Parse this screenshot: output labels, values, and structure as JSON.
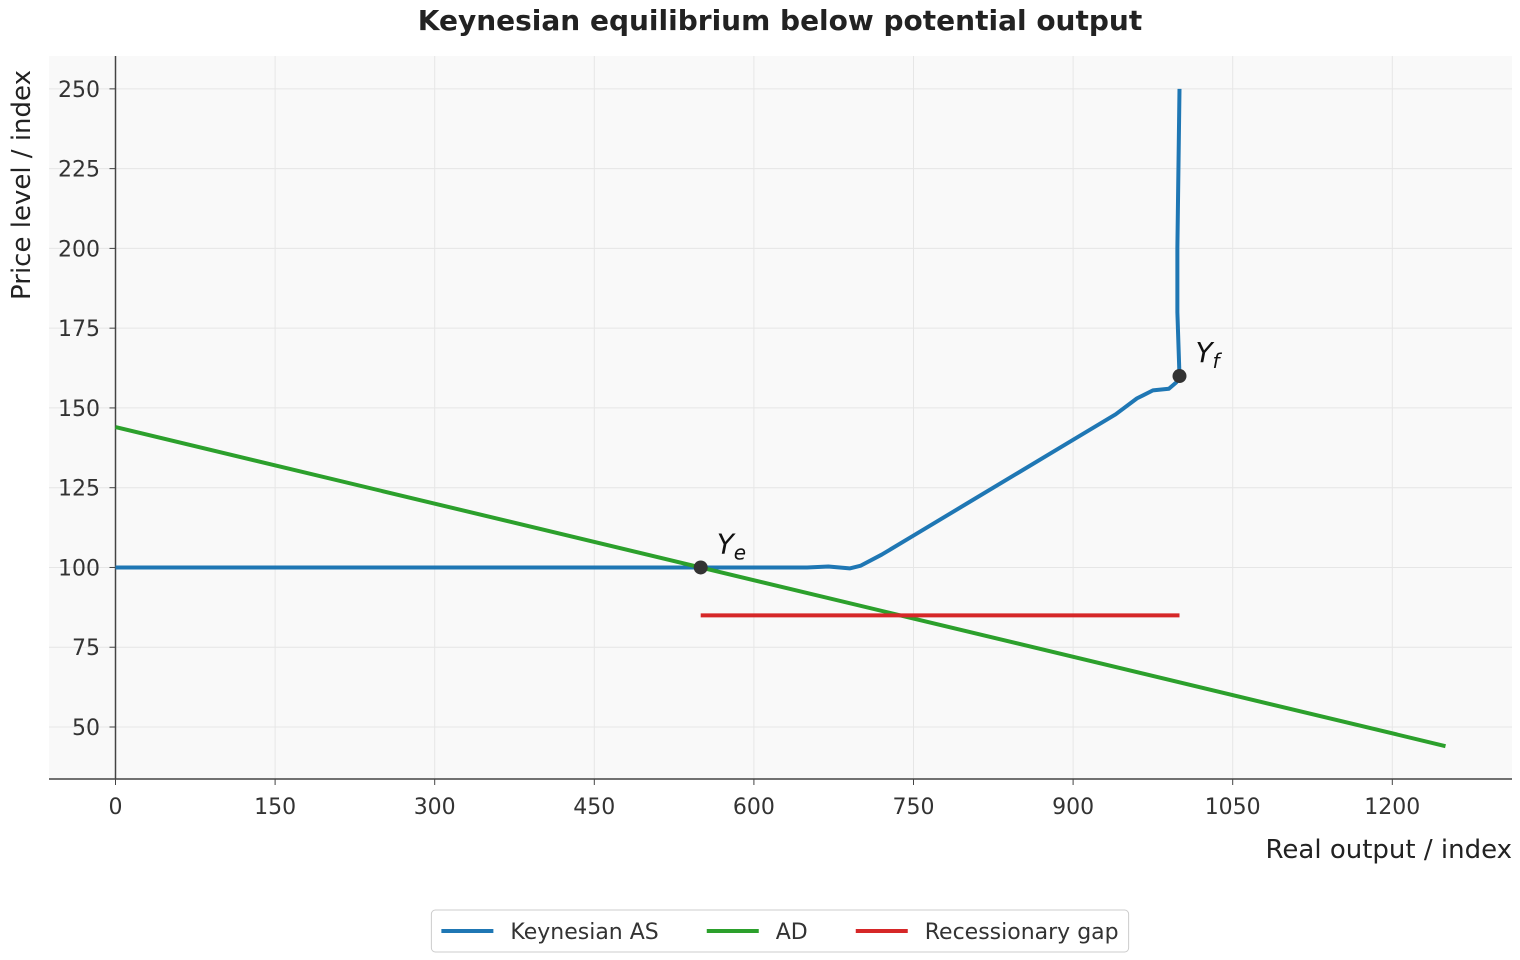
{
  "chart_data": {
    "type": "line",
    "title": "Keynesian equilibrium below potential output",
    "x_label": "Real output / index",
    "y_label": "Price level / index",
    "xlim": [
      -62.5,
      1312.5
    ],
    "ylim": [
      33.7,
      260.3
    ],
    "xticks": [
      0,
      150,
      300,
      450,
      600,
      750,
      900,
      1050,
      1200
    ],
    "yticks": [
      50,
      75,
      100,
      125,
      150,
      175,
      200,
      225,
      250
    ],
    "grid": true,
    "legend": "bottom",
    "series": [
      {
        "name": "Keynesian AS",
        "color": "#1f77b4",
        "x": [
          0,
          100,
          200,
          300,
          400,
          500,
          550,
          600,
          650,
          670,
          690,
          700,
          720,
          750,
          800,
          850,
          900,
          940,
          960,
          975,
          990,
          997,
          1000,
          999,
          998,
          998,
          999,
          1000
        ],
        "values": [
          100,
          100,
          100,
          100,
          100,
          100,
          100,
          100,
          100,
          100.3,
          99.7,
          100.5,
          104,
          110,
          120,
          130,
          140,
          148,
          153,
          155.5,
          156,
          158,
          160,
          170,
          180,
          200,
          225,
          250
        ]
      },
      {
        "name": "AD",
        "color": "#2ca02c",
        "x": [
          0,
          1250
        ],
        "values": [
          144,
          44
        ]
      },
      {
        "name": "Recessionary gap",
        "color": "#d62728",
        "x": [
          550,
          1000
        ],
        "values": [
          85,
          85
        ]
      }
    ],
    "annotations": [
      {
        "label": "Y",
        "sub": "e",
        "x": 550,
        "y": 100
      },
      {
        "label": "Y",
        "sub": "f",
        "x": 1000,
        "y": 160
      }
    ]
  }
}
